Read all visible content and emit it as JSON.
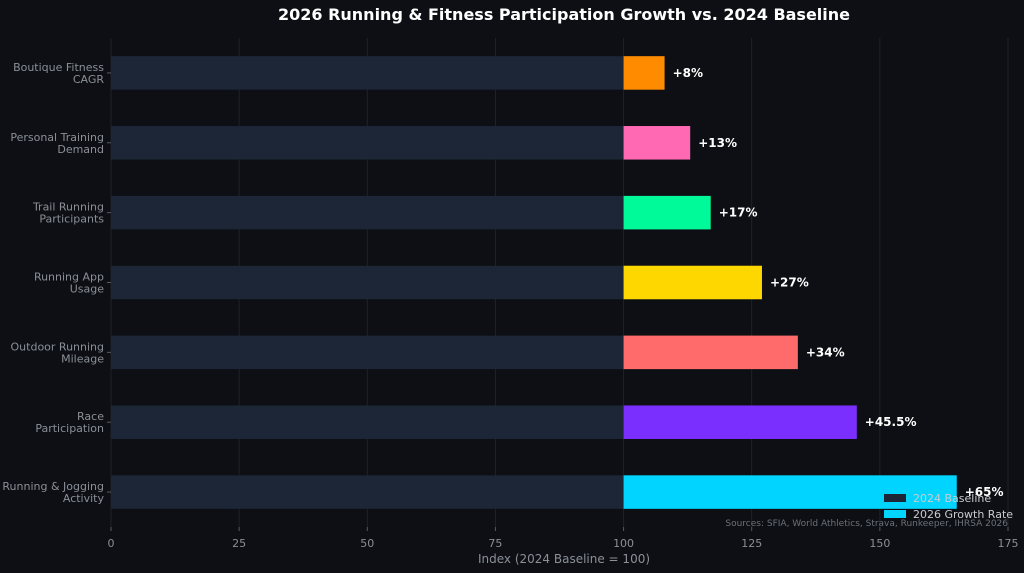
{
  "chart_data": {
    "type": "bar",
    "orientation": "horizontal",
    "title": "2026 Running & Fitness Participation Growth vs. 2024 Baseline",
    "xlabel": "Index (2024 Baseline = 100)",
    "ylabel": "",
    "xlim": [
      0,
      175
    ],
    "xticks": [
      0,
      25,
      50,
      75,
      100,
      125,
      150,
      175
    ],
    "grid": true,
    "legend_position": "bottom-right",
    "source": "Sources: SFIA, World Athletics, Strava, Runkeeper, IHRSA 2026",
    "categories": [
      [
        "Boutique Fitness",
        "CAGR"
      ],
      [
        "Personal Training",
        "Demand"
      ],
      [
        "Trail Running",
        "Participants"
      ],
      [
        "Running App",
        "Usage"
      ],
      [
        "Outdoor Running",
        "Mileage"
      ],
      [
        "Race",
        "Participation"
      ],
      [
        "Running & Jogging",
        "Activity"
      ]
    ],
    "series": [
      {
        "name": "2024 Baseline",
        "color": "#1c2636",
        "values": [
          100,
          100,
          100,
          100,
          100,
          100,
          100
        ]
      },
      {
        "name": "2026 Growth Rate",
        "color": "#00d4ff",
        "values": [
          8,
          13,
          17,
          27,
          34,
          45.5,
          65
        ],
        "colors": [
          "#ff8c00",
          "#ff69b4",
          "#00fa9a",
          "#ffd700",
          "#ff6b6b",
          "#7b2fff",
          "#00d4ff"
        ],
        "data_labels": [
          "+8%",
          "+13%",
          "+17%",
          "+27%",
          "+34%",
          "+45.5%",
          "+65%"
        ]
      }
    ]
  },
  "colors": {
    "background": "#0d0f14",
    "grid": "#1e222b"
  }
}
